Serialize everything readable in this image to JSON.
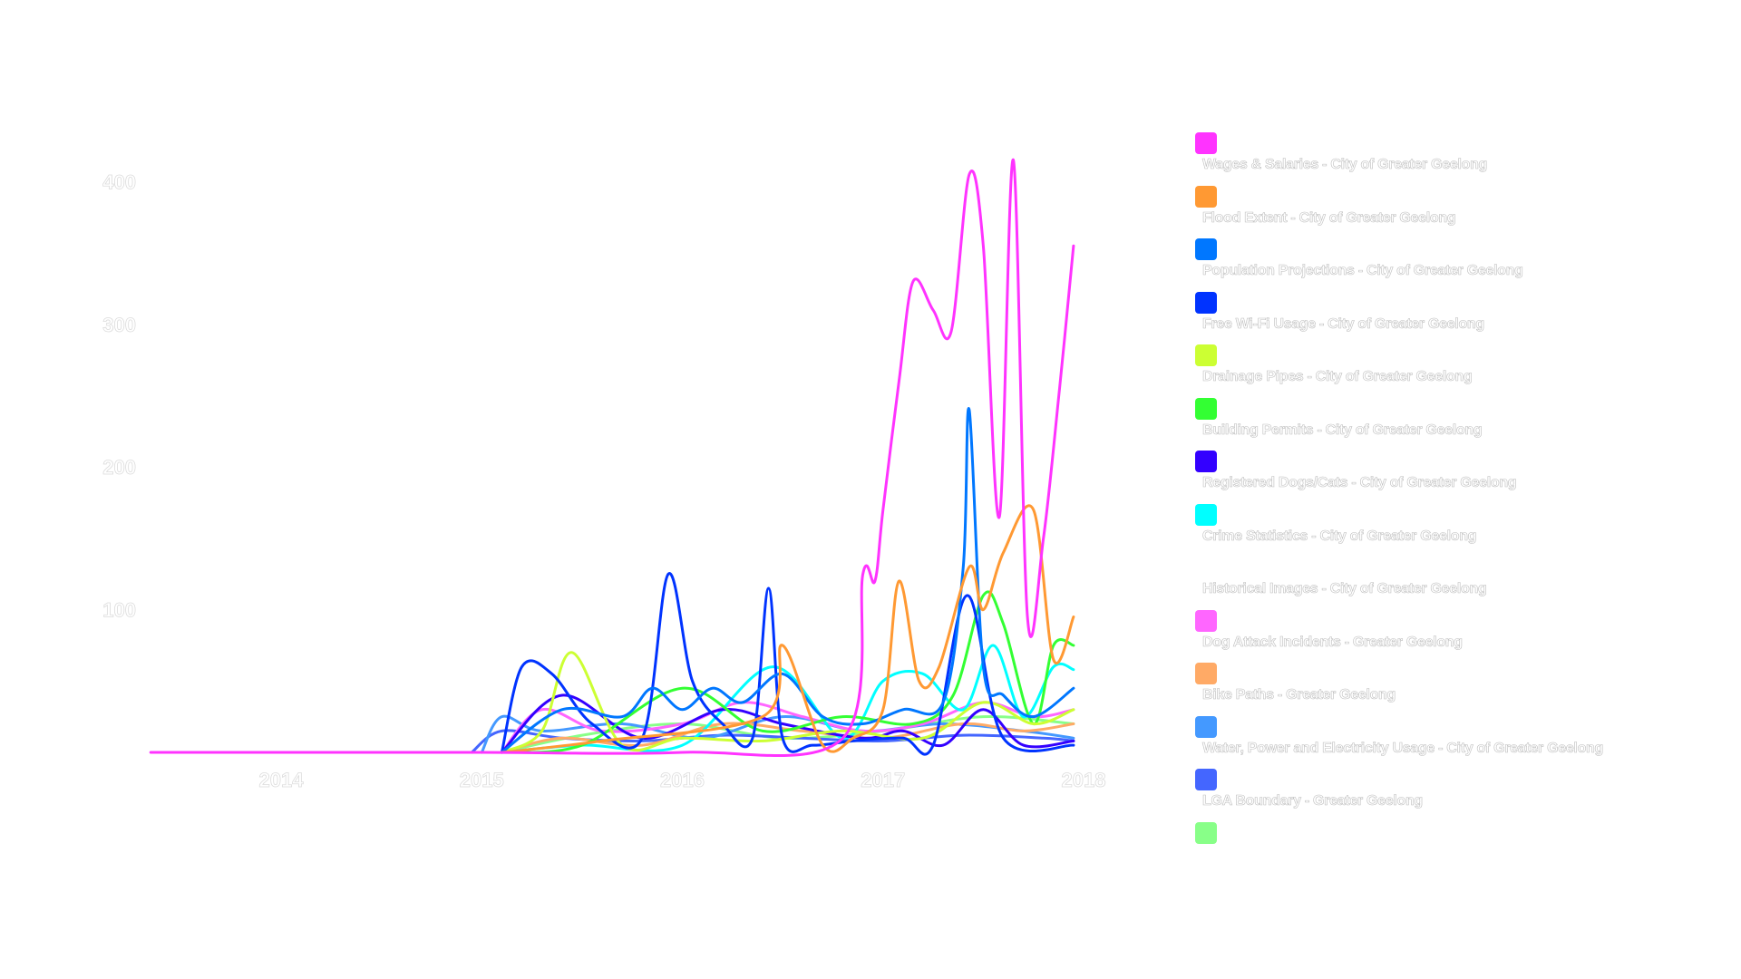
{
  "chart_data": {
    "type": "line",
    "title": "",
    "xlabel": "",
    "ylabel": "",
    "x_ticks": [
      "2014",
      "2015",
      "2016",
      "2017",
      "2018"
    ],
    "y_ticks": [
      "100",
      "200",
      "300",
      "400"
    ],
    "xlim": [
      2013.35,
      2018.0
    ],
    "ylim": [
      0,
      430
    ],
    "legend_position": "right",
    "grid": false,
    "series": [
      {
        "name": "Wages & Salaries - City of Greater Geelong",
        "color": "#ff33ff",
        "x": [
          2013.35,
          2014.0,
          2015.0,
          2016.0,
          2016.8,
          2016.9,
          2016.96,
          2017.0,
          2017.08,
          2017.15,
          2017.25,
          2017.34,
          2017.43,
          2017.5,
          2017.58,
          2017.65,
          2017.72,
          2017.8,
          2017.88,
          2017.95
        ],
        "y": [
          0,
          0,
          0,
          0,
          10,
          125,
          120,
          170,
          260,
          330,
          310,
          295,
          405,
          355,
          165,
          415,
          95,
          150,
          255,
          355
        ]
      },
      {
        "name": "Flood Extent - City of Greater Geelong",
        "color": "#ff9933",
        "x": [
          2015.1,
          2015.6,
          2016.4,
          2016.5,
          2016.7,
          2016.85,
          2017.0,
          2017.08,
          2017.18,
          2017.28,
          2017.43,
          2017.5,
          2017.6,
          2017.75,
          2017.85,
          2017.95
        ],
        "y": [
          0,
          8,
          25,
          75,
          5,
          10,
          30,
          120,
          50,
          60,
          130,
          100,
          140,
          170,
          65,
          95
        ]
      },
      {
        "name": "Population Projections - City of Greater Geelong",
        "color": "#0077ff",
        "x": [
          2015.1,
          2015.4,
          2015.7,
          2015.85,
          2016.0,
          2016.15,
          2016.3,
          2016.5,
          2016.7,
          2016.9,
          2017.1,
          2017.3,
          2017.4,
          2017.43,
          2017.5,
          2017.6,
          2017.75,
          2017.95
        ],
        "y": [
          0,
          30,
          25,
          45,
          30,
          45,
          35,
          55,
          25,
          20,
          30,
          35,
          130,
          240,
          60,
          40,
          25,
          45
        ]
      },
      {
        "name": "Free Wi-Fi Usage - City of Greater Geelong",
        "color": "#0033ff",
        "x": [
          2015.1,
          2015.2,
          2015.35,
          2015.55,
          2015.8,
          2015.93,
          2016.05,
          2016.2,
          2016.35,
          2016.43,
          2016.5,
          2016.65,
          2016.85,
          2017.1,
          2017.25,
          2017.42,
          2017.6,
          2017.95
        ],
        "y": [
          0,
          60,
          55,
          20,
          10,
          125,
          50,
          20,
          10,
          115,
          10,
          5,
          8,
          10,
          5,
          110,
          10,
          5
        ]
      },
      {
        "name": "Drainage Pipes - City of Greater Geelong",
        "color": "#ccff33",
        "x": [
          2015.1,
          2015.3,
          2015.45,
          2015.7,
          2016.0,
          2016.4,
          2016.8,
          2017.2,
          2017.5,
          2017.75,
          2017.95
        ],
        "y": [
          0,
          15,
          70,
          5,
          10,
          8,
          15,
          10,
          35,
          20,
          30
        ]
      },
      {
        "name": "Building Permits - City of Greater Geelong",
        "color": "#33ff33",
        "x": [
          2015.1,
          2015.5,
          2016.0,
          2016.4,
          2016.8,
          2017.15,
          2017.35,
          2017.5,
          2017.6,
          2017.75,
          2017.85,
          2017.95
        ],
        "y": [
          0,
          5,
          45,
          15,
          25,
          20,
          40,
          110,
          90,
          20,
          75,
          75
        ]
      },
      {
        "name": "Registered Dogs/Cats - City of Greater Geelong",
        "color": "#3300ff",
        "x": [
          2015.1,
          2015.4,
          2015.8,
          2016.2,
          2016.5,
          2016.9,
          2017.1,
          2017.3,
          2017.5,
          2017.7,
          2017.95
        ],
        "y": [
          0,
          40,
          10,
          30,
          20,
          10,
          15,
          5,
          30,
          5,
          8
        ]
      },
      {
        "name": "Crime Statistics - City of Greater Geelong",
        "color": "#00ffff",
        "x": [
          2015.1,
          2015.5,
          2016.0,
          2016.45,
          2016.8,
          2017.0,
          2017.2,
          2017.4,
          2017.55,
          2017.7,
          2017.85,
          2017.95
        ],
        "y": [
          0,
          5,
          5,
          60,
          10,
          50,
          55,
          30,
          75,
          25,
          60,
          58
        ]
      },
      {
        "name": "Historical Images - City of Greater Geelong",
        "color": "#ffffff",
        "x": [
          2015.1,
          2016.0,
          2017.0,
          2017.95
        ],
        "y": [
          0,
          2,
          3,
          2
        ]
      },
      {
        "name": "Dog Attack Incidents - Greater Geelong",
        "color": "#ff66ff",
        "x": [
          2015.1,
          2015.3,
          2015.6,
          2016.0,
          2016.3,
          2016.6,
          2016.9,
          2017.2,
          2017.5,
          2017.75,
          2017.95
        ],
        "y": [
          0,
          30,
          15,
          20,
          35,
          25,
          15,
          20,
          35,
          25,
          30
        ]
      },
      {
        "name": "Bike Paths - Greater Geelong",
        "color": "#ffaa66",
        "x": [
          2015.1,
          2015.4,
          2015.8,
          2016.2,
          2016.6,
          2017.0,
          2017.4,
          2017.7,
          2017.95
        ],
        "y": [
          0,
          10,
          5,
          20,
          15,
          10,
          20,
          15,
          20
        ]
      },
      {
        "name": "Water, Power and Electricity Usage - City of Greater Geelong",
        "color": "#4499ff",
        "x": [
          2015.0,
          2015.1,
          2015.3,
          2015.7,
          2016.1,
          2016.5,
          2016.9,
          2017.3,
          2017.7,
          2017.95
        ],
        "y": [
          0,
          25,
          15,
          20,
          10,
          25,
          15,
          20,
          15,
          10
        ]
      },
      {
        "name": "LGA Boundary - Greater Geelong",
        "color": "#4466ff",
        "x": [
          2014.95,
          2015.1,
          2015.4,
          2015.8,
          2016.2,
          2016.6,
          2017.0,
          2017.4,
          2017.8,
          2017.95
        ],
        "y": [
          0,
          15,
          10,
          8,
          12,
          10,
          8,
          12,
          10,
          8
        ]
      },
      {
        "name": "",
        "color": "#88ff88",
        "x": [
          2015.1,
          2015.5,
          2016.0,
          2016.5,
          2017.0,
          2017.5,
          2017.95
        ],
        "y": [
          0,
          12,
          20,
          10,
          15,
          25,
          20
        ]
      }
    ]
  }
}
